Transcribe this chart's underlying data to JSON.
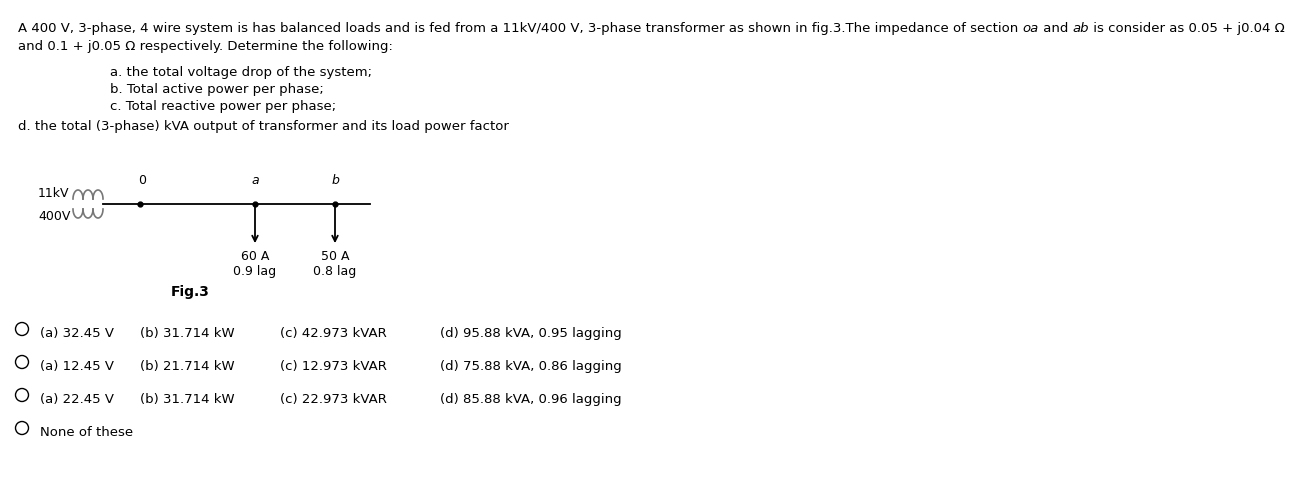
{
  "background_color": "#ffffff",
  "text_color": "#000000",
  "fig_width": 12.0,
  "fig_height": 4.64,
  "header_line1_pre": "A 400 V, 3-phase, 4 wire system is has balanced loads and is fed from a 11kV/400 V, 3-phase transformer as shown in fig.3.The impedance of section ",
  "header_bold_oa": "oa",
  "header_mid": " and ",
  "header_bold_ab": "ab",
  "header_post": " is consider as 0.05 + j0.04 Ω",
  "header_line2": "and 0.1 + j0.05 Ω respectively. Determine the following:",
  "item_a": "a. the total voltage drop of the system;",
  "item_b": "b. Total active power per phase;",
  "item_c": "c. Total reactive power per phase;",
  "item_d": "d. the total (3-phase) kVA output of transformer and its load power factor",
  "fig_label": "Fig.3",
  "transformer_label_top": "11kV",
  "transformer_label_bot": "400V",
  "node_o": "0",
  "node_a": "a",
  "node_b": "b",
  "load_a_current": "60 A",
  "load_a_pf": "0.9 lag",
  "load_b_current": "50 A",
  "load_b_pf": "0.8 lag",
  "opt1_a": "(a) 32.45 V",
  "opt1_b": "(b) 31.714 kW",
  "opt1_c": "(c) 42.973 kVAR",
  "opt1_d": "(d) 95.88 kVA, 0.95 lagging",
  "opt2_a": "(a) 12.45 V",
  "opt2_b": "(b) 21.714 kW",
  "opt2_c": "(c) 12.973 kVAR",
  "opt2_d": "(d) 75.88 kVA, 0.86 lagging",
  "opt3_a": "(a) 22.45 V",
  "opt3_b": "(b) 31.714 kW",
  "opt3_c": "(c) 22.973 kVAR",
  "opt3_d": "(d) 85.88 kVA, 0.96 lagging",
  "opt4": "None of these",
  "font_size_header": 9.5,
  "font_size_body": 9.5,
  "font_size_options": 9.5,
  "font_size_fig": 10.0,
  "font_size_diagram": 9.0
}
